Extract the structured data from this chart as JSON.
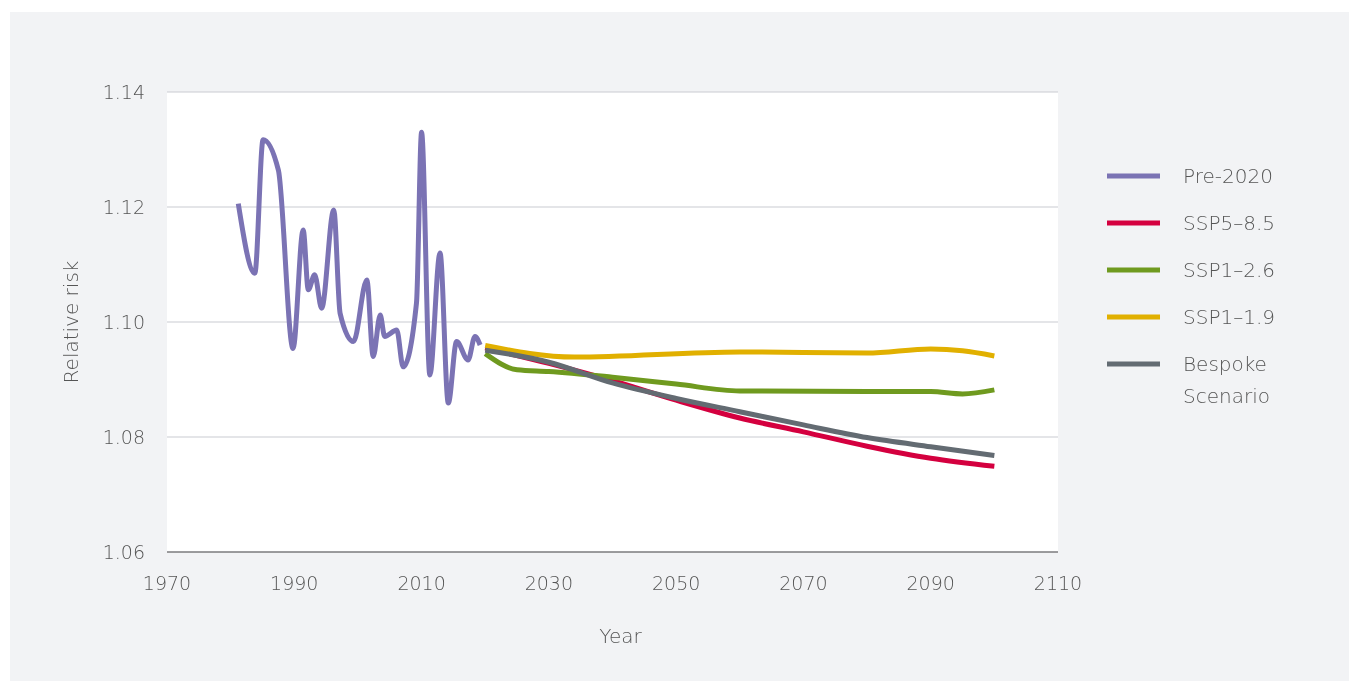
{
  "chart_data": {
    "type": "line",
    "xlabel": "Year",
    "ylabel": "Relative risk",
    "xlim": [
      1970,
      2110
    ],
    "xticks": [
      1970,
      1990,
      2010,
      2030,
      2050,
      2070,
      2090,
      2110
    ],
    "ylim": [
      1.06,
      1.14
    ],
    "yticks": [
      {
        "value": 1.06,
        "label": "1.06"
      },
      {
        "value": 1.08,
        "label": "1.08"
      },
      {
        "value": 1.1,
        "label": "1.10"
      },
      {
        "value": 1.12,
        "label": "1.12"
      },
      {
        "value": 1.14,
        "label": "1.14"
      }
    ],
    "grid": "y",
    "legend": "right",
    "line_style": "solid",
    "marker": "none",
    "series": [
      {
        "name": "Pre-2020",
        "color": "#7b73b4",
        "x": [
          1981.2,
          1983.8,
          1985.1,
          1987.5,
          1989.8,
          1991.4,
          1992.2,
          1993.2,
          1994.3,
          1996.2,
          1997.2,
          1999.3,
          2001.4,
          2002.4,
          2003.5,
          2004.2,
          2006.1,
          2007.1,
          2009.2,
          2010,
          2011.3,
          2012.9,
          2014.2,
          2015.5,
          2017.3,
          2018.4,
          2019.2
        ],
        "values": [
          1.1206,
          1.1085,
          1.1317,
          1.1264,
          1.0954,
          1.116,
          1.1056,
          1.1082,
          1.1024,
          1.1195,
          1.1015,
          1.0966,
          1.1073,
          1.094,
          1.1012,
          1.0975,
          1.0986,
          1.0922,
          1.1033,
          1.133,
          1.0908,
          1.112,
          1.0859,
          1.0966,
          1.0934,
          1.0975,
          1.096
        ]
      },
      {
        "name": "SSP5–8.5",
        "color": "#d4003f",
        "x": [
          2020,
          2030,
          2040,
          2050,
          2060,
          2070,
          2080,
          2090,
          2100
        ],
        "values": [
          1.0955,
          1.0928,
          1.0898,
          1.0864,
          1.0833,
          1.0809,
          1.0784,
          1.0763,
          1.0749
        ]
      },
      {
        "name": "SSP1–2.6",
        "color": "#6f9a1f",
        "x": [
          2020,
          2025,
          2030,
          2040,
          2050,
          2060,
          2080,
          2090,
          2095,
          2100
        ],
        "values": [
          1.0945,
          1.0917,
          1.0914,
          1.0904,
          1.0892,
          1.088,
          1.0879,
          1.0879,
          1.0875,
          1.0882
        ]
      },
      {
        "name": "SSP1–1.9",
        "color": "#e1b000",
        "x": [
          2020,
          2034,
          2060,
          2080,
          2090,
          2095,
          2100
        ],
        "values": [
          1.0959,
          1.0939,
          1.0948,
          1.0946,
          1.0953,
          1.095,
          1.0941
        ]
      },
      {
        "name": "Bespoke Scenario",
        "color": "#636b72",
        "x": [
          2020,
          2030,
          2040,
          2050,
          2060,
          2070,
          2080,
          2090,
          2100
        ],
        "values": [
          1.0951,
          1.093,
          1.0894,
          1.0867,
          1.0844,
          1.0821,
          1.0799,
          1.0783,
          1.0768
        ]
      }
    ]
  }
}
